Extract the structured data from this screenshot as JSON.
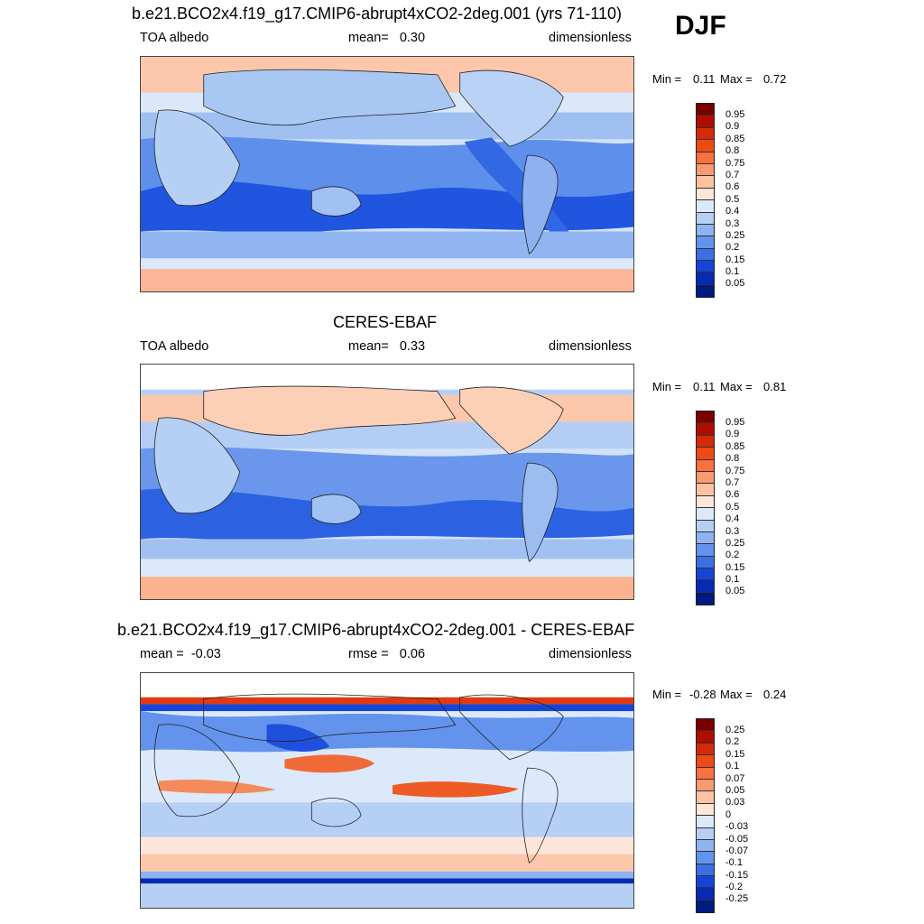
{
  "season": "DJF",
  "panels": [
    {
      "title": "b.e21.BCO2x4.f19_g17.CMIP6-abrupt4xCO2-2deg.001 (yrs 71-110)",
      "left": "TOA albedo",
      "center": "mean=   0.30",
      "right": "dimensionless",
      "min_label": "Min =",
      "min_value": "0.11",
      "max_label": "Max =",
      "max_value": "0.72",
      "colorbar_labels": [
        "0.95",
        "0.9",
        "0.85",
        "0.8",
        "0.75",
        "0.7",
        "0.6",
        "0.5",
        "0.4",
        "0.3",
        "0.25",
        "0.2",
        "0.15",
        "0.1",
        "0.05"
      ]
    },
    {
      "title": "CERES-EBAF",
      "left": "TOA albedo",
      "center": "mean=   0.33",
      "right": "dimensionless",
      "min_label": "Min =",
      "min_value": "0.11",
      "max_label": "Max =",
      "max_value": "0.81",
      "colorbar_labels": [
        "0.95",
        "0.9",
        "0.85",
        "0.8",
        "0.75",
        "0.7",
        "0.6",
        "0.5",
        "0.4",
        "0.3",
        "0.25",
        "0.2",
        "0.15",
        "0.1",
        "0.05"
      ]
    },
    {
      "title": "b.e21.BCO2x4.f19_g17.CMIP6-abrupt4xCO2-2deg.001 - CERES-EBAF",
      "left": "mean =  -0.03",
      "center": "rmse =   0.06",
      "right": "dimensionless",
      "min_label": "Min =",
      "min_value": "-0.28",
      "max_label": "Max =",
      "max_value": "0.24",
      "colorbar_labels": [
        "0.25",
        "0.2",
        "0.15",
        "0.1",
        "0.07",
        "0.05",
        "0.03",
        "0",
        "-0.03",
        "-0.05",
        "-0.07",
        "-0.1",
        "-0.15",
        "-0.2",
        "-0.25"
      ]
    }
  ],
  "colorbar_colors": [
    "#7a0000",
    "#b00c00",
    "#d42a08",
    "#ee4a14",
    "#fa7040",
    "#fb9970",
    "#fcc2a2",
    "#fde6d8",
    "#dce9fa",
    "#b5cff5",
    "#8eb3f0",
    "#6393ec",
    "#3b6fe6",
    "#1545d8",
    "#062ab2",
    "#001a80"
  ]
}
